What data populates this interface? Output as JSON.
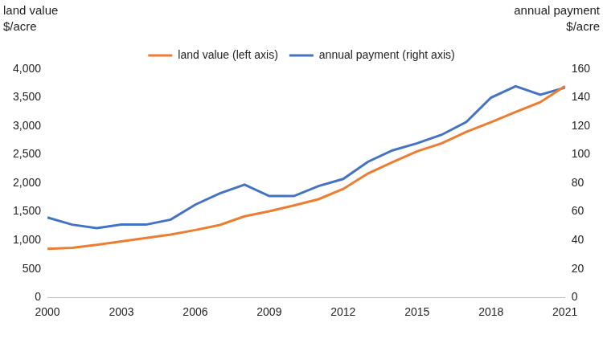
{
  "chart_data": {
    "type": "line",
    "ylabel": [
      "land value",
      "$/acre"
    ],
    "y2label": [
      "annual payment",
      "$/acre"
    ],
    "categories": [
      "2000",
      null,
      null,
      "2003",
      null,
      null,
      "2006",
      null,
      null,
      "2009",
      null,
      null,
      "2012",
      null,
      null,
      "2015",
      null,
      null,
      "2018",
      null,
      null,
      "2021"
    ],
    "series": [
      {
        "name": "land value (left axis)",
        "color": "#ed7d31",
        "axis": "y",
        "values": [
          850,
          870,
          920,
          980,
          1040,
          1100,
          1180,
          1270,
          1420,
          1510,
          1610,
          1720,
          1900,
          2170,
          2370,
          2560,
          2700,
          2900,
          3070,
          3250,
          3420,
          3700
        ]
      },
      {
        "name": "annual payment (right axis)",
        "color": "#4472c4",
        "axis": "y2",
        "values": [
          56,
          51,
          48.5,
          51,
          51,
          54.5,
          65,
          73,
          79,
          71,
          71,
          78,
          83,
          95,
          103,
          108,
          114,
          123,
          140,
          148,
          142,
          147
        ]
      }
    ],
    "ylim": [
      0,
      4000
    ],
    "yticks": [
      0,
      500,
      {
        "value": 1000,
        "label": "1,000"
      },
      {
        "value": 1500,
        "label": "1,500"
      },
      {
        "value": 2000,
        "label": "2,000"
      },
      {
        "value": 2500,
        "label": "2,500"
      },
      {
        "value": 3000,
        "label": "3,000"
      },
      {
        "value": 3500,
        "label": "3,500"
      },
      {
        "value": 4000,
        "label": "4,000"
      }
    ],
    "y2lim": [
      0,
      160
    ],
    "y2ticks": [
      0,
      20,
      40,
      60,
      80,
      100,
      120,
      140,
      160
    ],
    "grid": false,
    "legend": "top"
  }
}
